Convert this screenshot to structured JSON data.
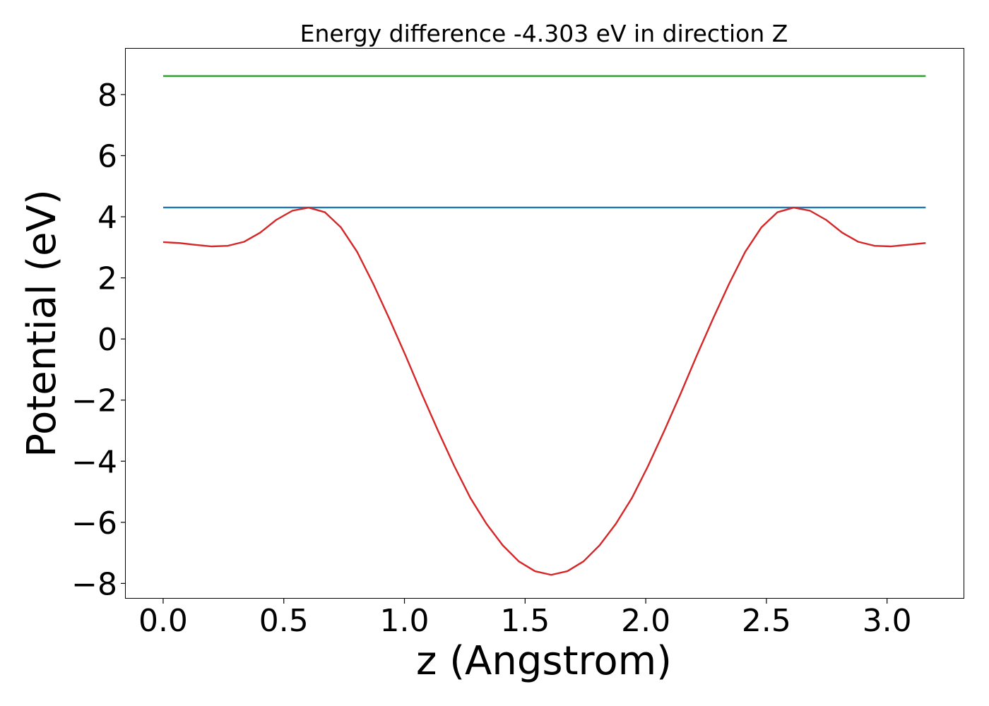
{
  "chart_data": {
    "type": "line",
    "title": "Energy difference -4.303 eV in direction Z",
    "xlabel": "z (Angstrom)",
    "ylabel": "Potential (eV)",
    "xlim": [
      -0.155,
      3.32
    ],
    "ylim": [
      -8.5,
      9.5
    ],
    "xticks": [
      0.0,
      0.5,
      1.0,
      1.5,
      2.0,
      2.5,
      3.0
    ],
    "xtick_labels": [
      "0.0",
      "0.5",
      "1.0",
      "1.5",
      "2.0",
      "2.5",
      "3.0"
    ],
    "yticks": [
      -8,
      -6,
      -4,
      -2,
      0,
      2,
      4,
      6,
      8
    ],
    "ytick_labels": [
      "−8",
      "−6",
      "−4",
      "−2",
      "0",
      "2",
      "4",
      "6",
      "8"
    ],
    "grid": false,
    "legend": "none",
    "series": [
      {
        "color": "#2ca02c",
        "x": [
          0.0,
          3.16
        ],
        "y": [
          8.606,
          8.606
        ]
      },
      {
        "color": "#1f77b4",
        "x": [
          0.0,
          3.16
        ],
        "y": [
          4.303,
          4.303
        ]
      },
      {
        "color": "#d62728",
        "x": [
          0.0,
          0.067,
          0.134,
          0.201,
          0.268,
          0.335,
          0.402,
          0.469,
          0.536,
          0.603,
          0.67,
          0.737,
          0.804,
          0.871,
          0.938,
          1.005,
          1.072,
          1.139,
          1.206,
          1.273,
          1.34,
          1.407,
          1.474,
          1.541,
          1.608,
          1.675,
          1.742,
          1.809,
          1.876,
          1.943,
          2.01,
          2.077,
          2.144,
          2.211,
          2.278,
          2.345,
          2.412,
          2.479,
          2.546,
          2.613,
          2.68,
          2.747,
          2.814,
          2.881,
          2.948,
          3.015,
          3.082,
          3.16
        ],
        "y": [
          3.17,
          3.14,
          3.08,
          3.03,
          3.05,
          3.18,
          3.48,
          3.9,
          4.2,
          4.3,
          4.15,
          3.65,
          2.85,
          1.8,
          0.65,
          -0.55,
          -1.8,
          -3.0,
          -4.15,
          -5.2,
          -6.05,
          -6.75,
          -7.28,
          -7.6,
          -7.72,
          -7.6,
          -7.28,
          -6.75,
          -6.05,
          -5.2,
          -4.15,
          -3.0,
          -1.8,
          -0.55,
          0.65,
          1.8,
          2.85,
          3.65,
          4.15,
          4.3,
          4.2,
          3.9,
          3.48,
          3.18,
          3.05,
          3.03,
          3.08,
          3.14
        ]
      }
    ]
  }
}
